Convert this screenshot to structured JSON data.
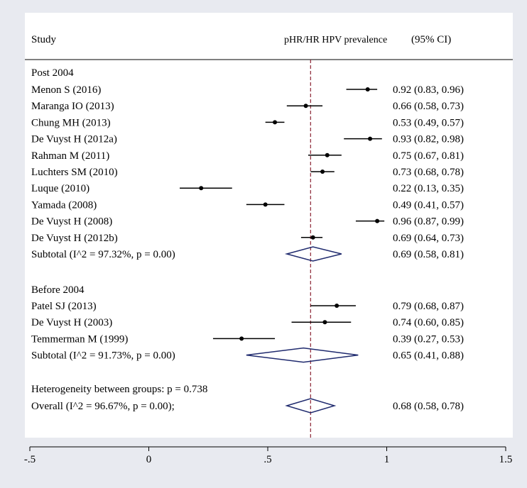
{
  "chart_data": {
    "type": "forest",
    "header": {
      "study": "Study",
      "effect": "pHR/HR HPV prevalence",
      "ci": "(95% CI)"
    },
    "groups": [
      {
        "title": "Post 2004",
        "studies": [
          {
            "name": "Menon S (2016)",
            "est": 0.92,
            "lo": 0.83,
            "hi": 0.96,
            "text": "0.92 (0.83, 0.96)"
          },
          {
            "name": "Maranga IO (2013)",
            "est": 0.66,
            "lo": 0.58,
            "hi": 0.73,
            "text": "0.66 (0.58, 0.73)"
          },
          {
            "name": "Chung MH (2013)",
            "est": 0.53,
            "lo": 0.49,
            "hi": 0.57,
            "text": "0.53 (0.49, 0.57)"
          },
          {
            "name": "De Vuyst H (2012a)",
            "est": 0.93,
            "lo": 0.82,
            "hi": 0.98,
            "text": "0.93 (0.82, 0.98)"
          },
          {
            "name": "Rahman M (2011)",
            "est": 0.75,
            "lo": 0.67,
            "hi": 0.81,
            "text": "0.75 (0.67, 0.81)"
          },
          {
            "name": "Luchters SM (2010)",
            "est": 0.73,
            "lo": 0.68,
            "hi": 0.78,
            "text": "0.73 (0.68, 0.78)"
          },
          {
            "name": "Luque (2010)",
            "est": 0.22,
            "lo": 0.13,
            "hi": 0.35,
            "text": "0.22 (0.13, 0.35)"
          },
          {
            "name": "Yamada (2008)",
            "est": 0.49,
            "lo": 0.41,
            "hi": 0.57,
            "text": "0.49 (0.41, 0.57)"
          },
          {
            "name": "De Vuyst H (2008)",
            "est": 0.96,
            "lo": 0.87,
            "hi": 0.99,
            "text": "0.96 (0.87, 0.99)"
          },
          {
            "name": "De Vuyst H (2012b)",
            "est": 0.69,
            "lo": 0.64,
            "hi": 0.73,
            "text": "0.69 (0.64, 0.73)"
          }
        ],
        "subtotal": {
          "label": "Subtotal  (I^2 = 97.32%, p = 0.00)",
          "est": 0.69,
          "lo": 0.58,
          "hi": 0.81,
          "text": "0.69 (0.58, 0.81)"
        }
      },
      {
        "title": "Before 2004",
        "studies": [
          {
            "name": "Patel SJ (2013)",
            "est": 0.79,
            "lo": 0.68,
            "hi": 0.87,
            "text": "0.79 (0.68, 0.87)"
          },
          {
            "name": "De Vuyst H (2003)",
            "est": 0.74,
            "lo": 0.6,
            "hi": 0.85,
            "text": "0.74 (0.60, 0.85)"
          },
          {
            "name": "Temmerman M (1999)",
            "est": 0.39,
            "lo": 0.27,
            "hi": 0.53,
            "text": "0.39 (0.27, 0.53)"
          }
        ],
        "subtotal": {
          "label": "Subtotal  (I^2 = 91.73%, p = 0.00)",
          "est": 0.65,
          "lo": 0.41,
          "hi": 0.88,
          "text": "0.65 (0.41, 0.88)"
        }
      }
    ],
    "heterogeneity": "Heterogeneity between groups: p = 0.738",
    "overall": {
      "label": "Overall  (I^2 = 96.67%, p = 0.00);",
      "est": 0.68,
      "lo": 0.58,
      "hi": 0.78,
      "text": "0.68 (0.58, 0.78)"
    },
    "reference_line": 0.68,
    "x_ticks": [
      {
        "value": -0.5,
        "label": "-.5"
      },
      {
        "value": 0,
        "label": "0"
      },
      {
        "value": 0.5,
        "label": ".5"
      },
      {
        "value": 1,
        "label": "1"
      },
      {
        "value": 1.5,
        "label": "1.5"
      }
    ],
    "xlim": [
      -0.5,
      1.5
    ]
  },
  "colors": {
    "background": "#e8eaf0",
    "panel": "#ffffff",
    "reference_line": "#8b2232",
    "diamond": "#1f2a6e",
    "ink": "#000000"
  }
}
